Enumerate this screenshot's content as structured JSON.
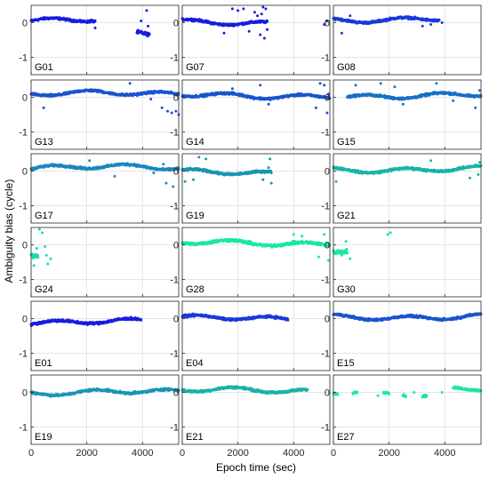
{
  "chart_data": {
    "type": "scatter",
    "xlabel": "Epoch time (sec)",
    "ylabel": "Ambiguity bias (cycle)",
    "xlim": [
      0,
      5300
    ],
    "ylim": [
      -1.5,
      0.5
    ],
    "x_ticks": [
      0,
      2000,
      4000
    ],
    "y_ticks": [
      -1,
      0
    ],
    "grid": true,
    "panels": [
      {
        "label": "G01",
        "color": "#1a1de0",
        "runs": [
          {
            "x0": 0,
            "x1": 2300,
            "y": 0.05,
            "spread": 0.08
          },
          {
            "x0": 3800,
            "x1": 4250,
            "y": -0.3,
            "spread": 0.12
          }
        ],
        "extra": [
          [
            2300,
            -0.15
          ],
          [
            2150,
            0.08
          ],
          [
            3950,
            0.05
          ],
          [
            4150,
            0.35
          ],
          [
            4200,
            -0.1
          ]
        ]
      },
      {
        "label": "G07",
        "color": "#1a1de0",
        "runs": [
          {
            "x0": 0,
            "x1": 3050,
            "y": 0.0,
            "spread": 0.08
          }
        ],
        "extra": [
          [
            1800,
            0.4
          ],
          [
            2200,
            0.4
          ],
          [
            2600,
            0.3
          ],
          [
            2900,
            0.45
          ],
          [
            2800,
            -0.35
          ],
          [
            2950,
            -0.45
          ],
          [
            1500,
            -0.3
          ],
          [
            2400,
            -0.25
          ],
          [
            2700,
            0.2
          ],
          [
            2000,
            0.35
          ],
          [
            3000,
            0.4
          ],
          [
            3050,
            -0.2
          ],
          [
            5100,
            -0.05
          ],
          [
            5200,
            0.05
          ],
          [
            2850,
            0.25
          ]
        ]
      },
      {
        "label": "G08",
        "color": "#1a3ad9",
        "runs": [
          {
            "x0": 0,
            "x1": 3800,
            "y": 0.1,
            "spread": 0.08
          }
        ],
        "extra": [
          [
            300,
            -0.3
          ],
          [
            600,
            0.2
          ],
          [
            3200,
            -0.1
          ],
          [
            3500,
            -0.05
          ],
          [
            3900,
            0.0
          ]
        ]
      },
      {
        "label": "G13",
        "color": "#1a54d0",
        "runs": [
          {
            "x0": 0,
            "x1": 5300,
            "y": 0.1,
            "spread": 0.08
          }
        ],
        "extra": [
          [
            450,
            -0.3
          ],
          [
            3550,
            0.4
          ],
          [
            4300,
            -0.05
          ],
          [
            4900,
            -0.4
          ],
          [
            5050,
            -0.45
          ],
          [
            5200,
            -0.4
          ],
          [
            4700,
            -0.3
          ],
          [
            5300,
            -0.5
          ]
        ]
      },
      {
        "label": "G14",
        "color": "#1a54d0",
        "runs": [
          {
            "x0": 0,
            "x1": 5300,
            "y": 0.05,
            "spread": 0.08
          }
        ],
        "extra": [
          [
            4800,
            -0.3
          ],
          [
            4950,
            0.4
          ],
          [
            5100,
            0.35
          ],
          [
            5200,
            -0.45
          ],
          [
            5250,
            0.1
          ],
          [
            2800,
            0.35
          ],
          [
            3100,
            -0.2
          ],
          [
            1800,
            0.25
          ]
        ]
      },
      {
        "label": "G15",
        "color": "#1a6ec8",
        "runs": [
          {
            "x0": 500,
            "x1": 5300,
            "y": 0.05,
            "spread": 0.08
          }
        ],
        "extra": [
          [
            800,
            0.35
          ],
          [
            1700,
            0.4
          ],
          [
            3700,
            0.4
          ],
          [
            4300,
            -0.1
          ],
          [
            5100,
            -0.3
          ],
          [
            5250,
            0.2
          ],
          [
            2500,
            -0.2
          ],
          [
            2200,
            0.3
          ]
        ]
      },
      {
        "label": "G17",
        "color": "#1a88bd",
        "runs": [
          {
            "x0": 0,
            "x1": 5300,
            "y": 0.1,
            "spread": 0.08
          }
        ],
        "extra": [
          [
            3000,
            -0.15
          ],
          [
            4400,
            -0.05
          ],
          [
            4850,
            -0.35
          ],
          [
            5100,
            -0.45
          ],
          [
            5250,
            0.1
          ],
          [
            4750,
            0.2
          ],
          [
            2100,
            0.3
          ]
        ]
      },
      {
        "label": "G19",
        "color": "#1a95b4",
        "runs": [
          {
            "x0": 0,
            "x1": 3200,
            "y": -0.05,
            "spread": 0.08
          }
        ],
        "extra": [
          [
            600,
            0.4
          ],
          [
            850,
            0.35
          ],
          [
            2900,
            -0.25
          ],
          [
            3100,
            0.1
          ],
          [
            3200,
            -0.35
          ],
          [
            3150,
            0.35
          ],
          [
            100,
            -0.3
          ],
          [
            400,
            -0.25
          ]
        ]
      },
      {
        "label": "G21",
        "color": "#1ab3a8",
        "runs": [
          {
            "x0": 0,
            "x1": 5300,
            "y": 0.05,
            "spread": 0.08
          }
        ],
        "extra": [
          [
            100,
            -0.3
          ],
          [
            3500,
            0.3
          ],
          [
            4900,
            -0.2
          ],
          [
            5200,
            -0.1
          ],
          [
            5250,
            0.25
          ]
        ]
      },
      {
        "label": "G24",
        "color": "#1adbb0",
        "runs": [
          {
            "x0": 0,
            "x1": 250,
            "y": -0.3,
            "spread": 0.15
          }
        ],
        "extra": [
          [
            400,
            0.35
          ],
          [
            500,
            -0.05
          ],
          [
            550,
            -0.3
          ],
          [
            600,
            -0.55
          ],
          [
            300,
            0.45
          ],
          [
            700,
            -0.4
          ],
          [
            200,
            -0.1
          ],
          [
            100,
            -0.6
          ]
        ]
      },
      {
        "label": "G28",
        "color": "#1ae8a0",
        "runs": [
          {
            "x0": 0,
            "x1": 5300,
            "y": 0.05,
            "spread": 0.1
          }
        ],
        "extra": [
          [
            4000,
            0.3
          ],
          [
            4300,
            0.25
          ],
          [
            4900,
            -0.35
          ],
          [
            5100,
            0.3
          ],
          [
            5250,
            -0.45
          ],
          [
            5200,
            0.05
          ]
        ]
      },
      {
        "label": "G30",
        "color": "#1ae8a0",
        "runs": [
          {
            "x0": 0,
            "x1": 500,
            "y": -0.15,
            "spread": 0.15
          }
        ],
        "extra": [
          [
            1950,
            0.3
          ],
          [
            2050,
            0.35
          ],
          [
            600,
            -0.4
          ],
          [
            450,
            0.1
          ],
          [
            300,
            -0.3
          ]
        ]
      },
      {
        "label": "E01",
        "color": "#1a1de0",
        "runs": [
          {
            "x0": 0,
            "x1": 3950,
            "y": -0.1,
            "spread": 0.09
          }
        ],
        "extra": []
      },
      {
        "label": "E04",
        "color": "#1a3ad9",
        "runs": [
          {
            "x0": 0,
            "x1": 3800,
            "y": 0.0,
            "spread": 0.08
          }
        ],
        "extra": []
      },
      {
        "label": "E15",
        "color": "#1a54d0",
        "runs": [
          {
            "x0": 0,
            "x1": 5300,
            "y": 0.05,
            "spread": 0.08
          }
        ],
        "extra": []
      },
      {
        "label": "E19",
        "color": "#1a95b4",
        "runs": [
          {
            "x0": 0,
            "x1": 5300,
            "y": 0.0,
            "spread": 0.08
          }
        ],
        "extra": []
      },
      {
        "label": "E21",
        "color": "#1ab3a8",
        "runs": [
          {
            "x0": 0,
            "x1": 4500,
            "y": 0.05,
            "spread": 0.08
          }
        ],
        "extra": []
      },
      {
        "label": "E27",
        "color": "#1ae8a0",
        "runs": [
          {
            "x0": 0,
            "x1": 150,
            "y": 0.0,
            "spread": 0.08
          },
          {
            "x0": 700,
            "x1": 850,
            "y": 0.0,
            "spread": 0.08
          },
          {
            "x0": 1800,
            "x1": 2000,
            "y": 0.0,
            "spread": 0.08
          },
          {
            "x0": 2500,
            "x1": 2600,
            "y": 0.0,
            "spread": 0.08
          },
          {
            "x0": 3200,
            "x1": 3350,
            "y": -0.05,
            "spread": 0.08
          },
          {
            "x0": 4300,
            "x1": 5300,
            "y": 0.1,
            "spread": 0.08
          }
        ],
        "extra": [
          [
            1600,
            -0.1
          ],
          [
            2900,
            0.0
          ],
          [
            3900,
            0.0
          ]
        ]
      }
    ]
  }
}
